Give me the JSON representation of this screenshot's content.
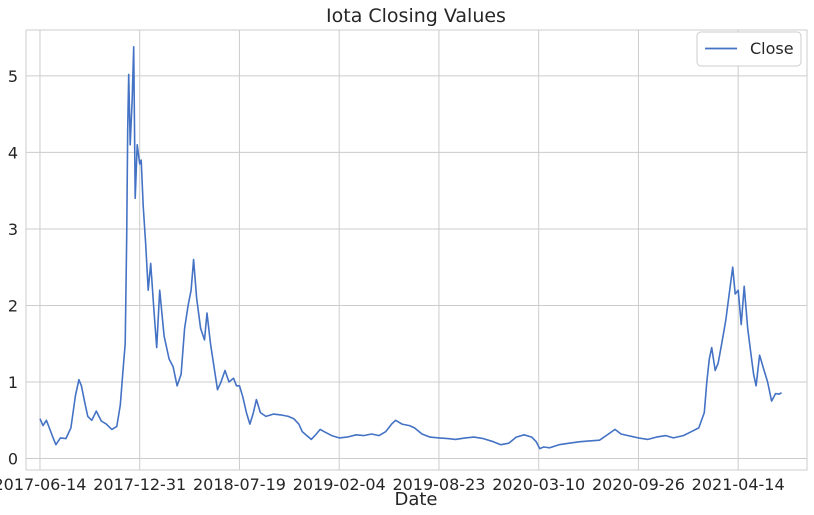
{
  "chart_data": {
    "type": "line",
    "title": "Iota Closing Values",
    "xlabel": "Date",
    "ylabel": "",
    "grid": true,
    "legend": {
      "placement": "top-right",
      "entries": [
        "Close"
      ]
    },
    "x_ticks": [
      "2017-06-14",
      "2017-12-31",
      "2018-07-19",
      "2019-02-04",
      "2019-08-23",
      "2020-03-10",
      "2020-09-26",
      "2021-04-14"
    ],
    "y_ticks": [
      0,
      1,
      2,
      3,
      4,
      5
    ],
    "xlim": [
      "2017-05-17",
      "2021-08-30"
    ],
    "ylim": [
      -0.15,
      5.6
    ],
    "colors": {
      "line": "#4472c4",
      "grid": "#cccccc",
      "axis": "#cccccc"
    },
    "series": [
      {
        "name": "Close",
        "points": [
          [
            "2017-06-14",
            0.52
          ],
          [
            "2017-06-20",
            0.43
          ],
          [
            "2017-06-27",
            0.5
          ],
          [
            "2017-07-04",
            0.38
          ],
          [
            "2017-07-11",
            0.26
          ],
          [
            "2017-07-16",
            0.18
          ],
          [
            "2017-07-25",
            0.27
          ],
          [
            "2017-08-05",
            0.26
          ],
          [
            "2017-08-15",
            0.4
          ],
          [
            "2017-08-24",
            0.82
          ],
          [
            "2017-08-31",
            1.03
          ],
          [
            "2017-09-05",
            0.95
          ],
          [
            "2017-09-12",
            0.73
          ],
          [
            "2017-09-18",
            0.55
          ],
          [
            "2017-09-26",
            0.5
          ],
          [
            "2017-10-05",
            0.62
          ],
          [
            "2017-10-15",
            0.49
          ],
          [
            "2017-10-25",
            0.45
          ],
          [
            "2017-11-05",
            0.38
          ],
          [
            "2017-11-15",
            0.42
          ],
          [
            "2017-11-22",
            0.7
          ],
          [
            "2017-11-28",
            1.2
          ],
          [
            "2017-12-02",
            1.5
          ],
          [
            "2017-12-05",
            2.9
          ],
          [
            "2017-12-07",
            4.3
          ],
          [
            "2017-12-09",
            5.02
          ],
          [
            "2017-12-12",
            4.1
          ],
          [
            "2017-12-16",
            4.7
          ],
          [
            "2017-12-19",
            5.38
          ],
          [
            "2017-12-22",
            3.4
          ],
          [
            "2017-12-26",
            4.1
          ],
          [
            "2017-12-31",
            3.85
          ],
          [
            "2018-01-03",
            3.9
          ],
          [
            "2018-01-07",
            3.3
          ],
          [
            "2018-01-12",
            2.8
          ],
          [
            "2018-01-17",
            2.2
          ],
          [
            "2018-01-22",
            2.55
          ],
          [
            "2018-01-28",
            1.98
          ],
          [
            "2018-02-03",
            1.45
          ],
          [
            "2018-02-09",
            2.2
          ],
          [
            "2018-02-18",
            1.6
          ],
          [
            "2018-02-28",
            1.3
          ],
          [
            "2018-03-08",
            1.2
          ],
          [
            "2018-03-16",
            0.95
          ],
          [
            "2018-03-24",
            1.1
          ],
          [
            "2018-03-31",
            1.7
          ],
          [
            "2018-04-07",
            2.0
          ],
          [
            "2018-04-13",
            2.2
          ],
          [
            "2018-04-18",
            2.6
          ],
          [
            "2018-04-24",
            2.1
          ],
          [
            "2018-05-02",
            1.7
          ],
          [
            "2018-05-10",
            1.55
          ],
          [
            "2018-05-15",
            1.9
          ],
          [
            "2018-05-22",
            1.5
          ],
          [
            "2018-05-29",
            1.2
          ],
          [
            "2018-06-05",
            0.9
          ],
          [
            "2018-06-12",
            1.0
          ],
          [
            "2018-06-20",
            1.15
          ],
          [
            "2018-06-28",
            1.0
          ],
          [
            "2018-07-07",
            1.05
          ],
          [
            "2018-07-13",
            0.95
          ],
          [
            "2018-07-19",
            0.95
          ],
          [
            "2018-07-26",
            0.8
          ],
          [
            "2018-08-02",
            0.6
          ],
          [
            "2018-08-09",
            0.45
          ],
          [
            "2018-08-16",
            0.6
          ],
          [
            "2018-08-22",
            0.77
          ],
          [
            "2018-08-30",
            0.6
          ],
          [
            "2018-09-10",
            0.55
          ],
          [
            "2018-09-25",
            0.58
          ],
          [
            "2018-10-10",
            0.57
          ],
          [
            "2018-10-25",
            0.55
          ],
          [
            "2018-11-05",
            0.52
          ],
          [
            "2018-11-15",
            0.45
          ],
          [
            "2018-11-22",
            0.35
          ],
          [
            "2018-12-01",
            0.3
          ],
          [
            "2018-12-10",
            0.25
          ],
          [
            "2018-12-20",
            0.32
          ],
          [
            "2018-12-28",
            0.38
          ],
          [
            "2019-01-05",
            0.35
          ],
          [
            "2019-01-20",
            0.3
          ],
          [
            "2019-02-04",
            0.27
          ],
          [
            "2019-02-20",
            0.28
          ],
          [
            "2019-03-10",
            0.31
          ],
          [
            "2019-03-25",
            0.3
          ],
          [
            "2019-04-10",
            0.32
          ],
          [
            "2019-04-25",
            0.3
          ],
          [
            "2019-05-08",
            0.35
          ],
          [
            "2019-05-20",
            0.45
          ],
          [
            "2019-05-28",
            0.5
          ],
          [
            "2019-06-10",
            0.45
          ],
          [
            "2019-06-25",
            0.43
          ],
          [
            "2019-07-05",
            0.4
          ],
          [
            "2019-07-20",
            0.32
          ],
          [
            "2019-08-05",
            0.28
          ],
          [
            "2019-08-23",
            0.27
          ],
          [
            "2019-09-10",
            0.26
          ],
          [
            "2019-09-25",
            0.25
          ],
          [
            "2019-10-15",
            0.27
          ],
          [
            "2019-11-01",
            0.28
          ],
          [
            "2019-11-20",
            0.26
          ],
          [
            "2019-12-10",
            0.22
          ],
          [
            "2019-12-25",
            0.18
          ],
          [
            "2020-01-10",
            0.2
          ],
          [
            "2020-01-25",
            0.28
          ],
          [
            "2020-02-10",
            0.31
          ],
          [
            "2020-02-25",
            0.28
          ],
          [
            "2020-03-05",
            0.22
          ],
          [
            "2020-03-12",
            0.13
          ],
          [
            "2020-03-20",
            0.15
          ],
          [
            "2020-04-01",
            0.14
          ],
          [
            "2020-04-20",
            0.18
          ],
          [
            "2020-05-10",
            0.2
          ],
          [
            "2020-06-01",
            0.22
          ],
          [
            "2020-06-20",
            0.23
          ],
          [
            "2020-07-10",
            0.24
          ],
          [
            "2020-07-28",
            0.32
          ],
          [
            "2020-08-10",
            0.38
          ],
          [
            "2020-08-22",
            0.32
          ],
          [
            "2020-09-05",
            0.3
          ],
          [
            "2020-09-26",
            0.27
          ],
          [
            "2020-10-15",
            0.25
          ],
          [
            "2020-11-01",
            0.28
          ],
          [
            "2020-11-20",
            0.3
          ],
          [
            "2020-12-05",
            0.27
          ],
          [
            "2020-12-25",
            0.3
          ],
          [
            "2021-01-10",
            0.35
          ],
          [
            "2021-01-25",
            0.4
          ],
          [
            "2021-02-05",
            0.6
          ],
          [
            "2021-02-10",
            1.0
          ],
          [
            "2021-02-15",
            1.3
          ],
          [
            "2021-02-20",
            1.45
          ],
          [
            "2021-02-27",
            1.15
          ],
          [
            "2021-03-05",
            1.25
          ],
          [
            "2021-03-12",
            1.5
          ],
          [
            "2021-03-20",
            1.8
          ],
          [
            "2021-03-28",
            2.2
          ],
          [
            "2021-04-03",
            2.5
          ],
          [
            "2021-04-08",
            2.15
          ],
          [
            "2021-04-14",
            2.2
          ],
          [
            "2021-04-20",
            1.75
          ],
          [
            "2021-04-26",
            2.25
          ],
          [
            "2021-05-03",
            1.7
          ],
          [
            "2021-05-10",
            1.35
          ],
          [
            "2021-05-15",
            1.1
          ],
          [
            "2021-05-20",
            0.95
          ],
          [
            "2021-05-27",
            1.35
          ],
          [
            "2021-06-05",
            1.15
          ],
          [
            "2021-06-12",
            1.0
          ],
          [
            "2021-06-20",
            0.75
          ],
          [
            "2021-06-28",
            0.85
          ],
          [
            "2021-07-05",
            0.84
          ],
          [
            "2021-07-10",
            0.86
          ]
        ]
      }
    ]
  }
}
